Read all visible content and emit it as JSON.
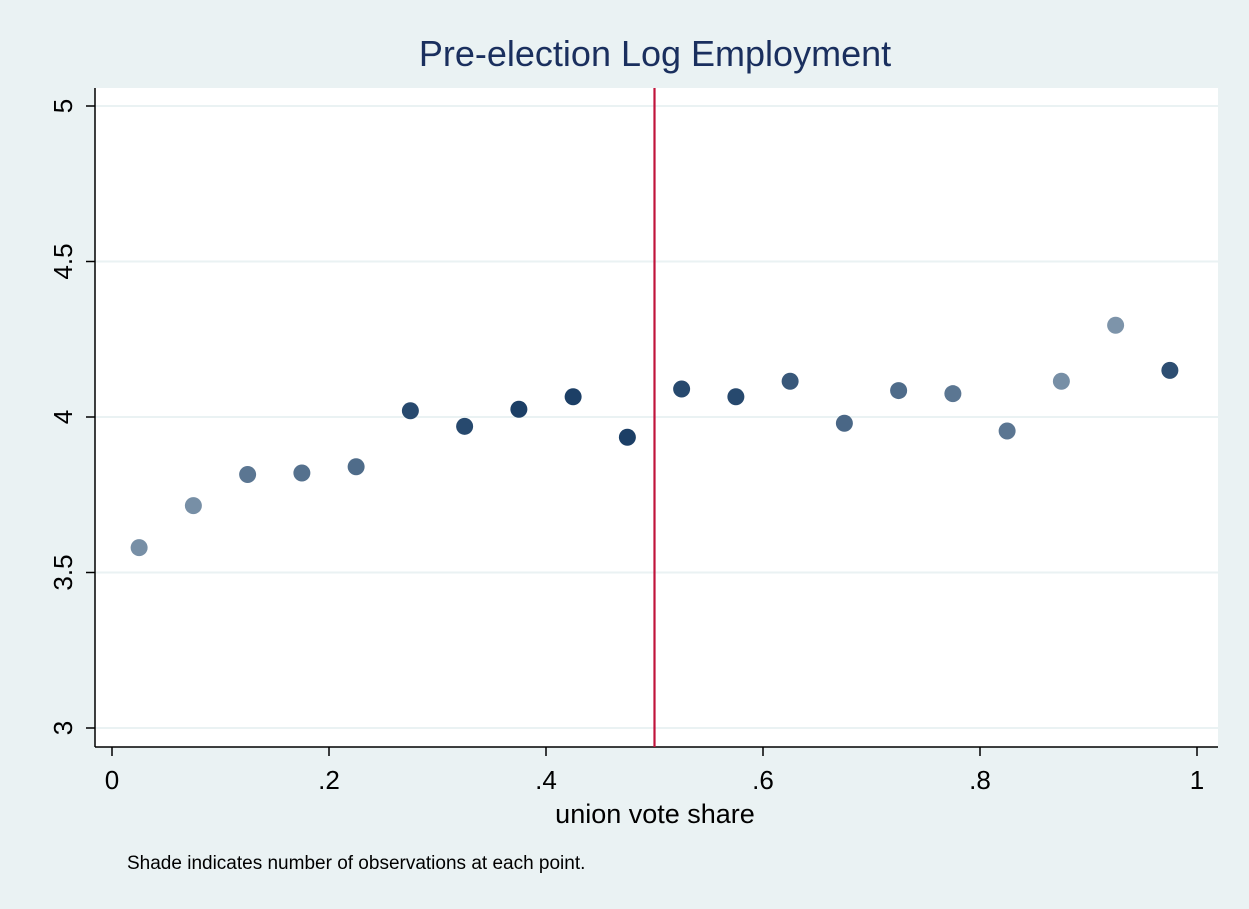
{
  "chart_data": {
    "type": "scatter",
    "title": "Pre-election Log Employment",
    "xlabel": "union vote share",
    "ylabel": "",
    "note": "Shade indicates number of observations at each point.",
    "xlim": [
      0,
      1
    ],
    "ylim": [
      3,
      5
    ],
    "xticks": [
      0,
      0.2,
      0.4,
      0.6,
      0.8,
      1
    ],
    "xtick_labels": [
      "0",
      ".2",
      ".4",
      ".6",
      ".8",
      "1"
    ],
    "yticks": [
      3,
      3.5,
      4,
      4.5,
      5
    ],
    "ytick_labels": [
      "3",
      "3.5",
      "4",
      "4.5",
      "5"
    ],
    "grid": true,
    "cutoff_line": {
      "x": 0.5,
      "color": "#c0143c"
    },
    "colors": {
      "background": "#eaf2f3",
      "plot_area": "#ffffff",
      "gridline": "#eaf2f3",
      "title": "#1a2f5e",
      "text": "#000000",
      "shade_light": "#8ea3b6",
      "shade_mid": "#5e7891",
      "shade_dark": "#1c3f66"
    },
    "points": [
      {
        "x": 0.025,
        "y": 3.58,
        "shade": 0.2
      },
      {
        "x": 0.075,
        "y": 3.715,
        "shade": 0.2
      },
      {
        "x": 0.125,
        "y": 3.815,
        "shade": 0.45
      },
      {
        "x": 0.175,
        "y": 3.82,
        "shade": 0.5
      },
      {
        "x": 0.225,
        "y": 3.84,
        "shade": 0.55
      },
      {
        "x": 0.275,
        "y": 4.02,
        "shade": 0.9
      },
      {
        "x": 0.325,
        "y": 3.97,
        "shade": 0.9
      },
      {
        "x": 0.375,
        "y": 4.025,
        "shade": 1.0
      },
      {
        "x": 0.425,
        "y": 4.065,
        "shade": 1.0
      },
      {
        "x": 0.475,
        "y": 3.935,
        "shade": 1.0
      },
      {
        "x": 0.525,
        "y": 4.09,
        "shade": 0.9
      },
      {
        "x": 0.575,
        "y": 4.065,
        "shade": 0.9
      },
      {
        "x": 0.625,
        "y": 4.115,
        "shade": 0.75
      },
      {
        "x": 0.675,
        "y": 3.98,
        "shade": 0.6
      },
      {
        "x": 0.725,
        "y": 4.085,
        "shade": 0.55
      },
      {
        "x": 0.775,
        "y": 4.075,
        "shade": 0.45
      },
      {
        "x": 0.825,
        "y": 3.955,
        "shade": 0.45
      },
      {
        "x": 0.875,
        "y": 4.115,
        "shade": 0.2
      },
      {
        "x": 0.925,
        "y": 4.295,
        "shade": 0.15
      },
      {
        "x": 0.975,
        "y": 4.15,
        "shade": 0.85
      }
    ]
  }
}
